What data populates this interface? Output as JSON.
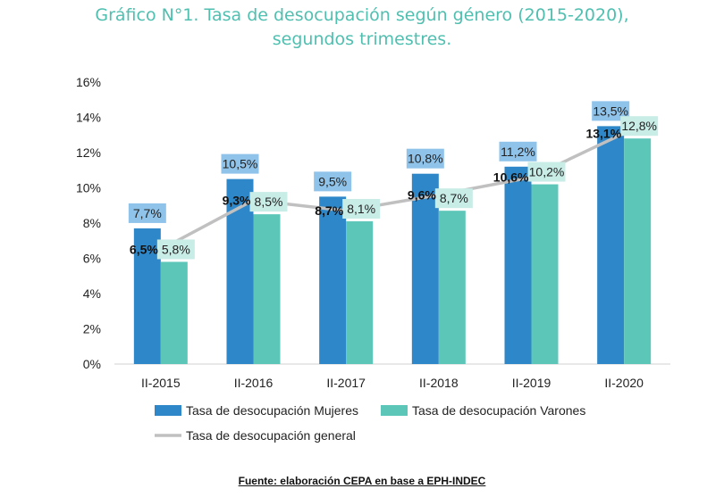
{
  "chart_data": {
    "type": "bar",
    "title_line1": "Gráfico N°1. Tasa de desocupación según género (2015-2020),",
    "title_line2": "segundos trimestres.",
    "categories": [
      "II-2015",
      "II-2016",
      "II-2017",
      "II-2018",
      "II-2019",
      "II-2020"
    ],
    "series": [
      {
        "name": "Tasa de desocupación  Mujeres",
        "type": "bar",
        "color": "#2e87c8",
        "values": [
          7.7,
          10.5,
          9.5,
          10.8,
          11.2,
          13.5
        ],
        "labels": [
          "7,7%",
          "10,5%",
          "9,5%",
          "10,8%",
          "11,2%",
          "13,5%"
        ]
      },
      {
        "name": "Tasa de desocupación Varones",
        "type": "bar",
        "color": "#5cc6b9",
        "values": [
          5.8,
          8.5,
          8.1,
          8.7,
          10.2,
          12.8
        ],
        "labels": [
          "5,8%",
          "8,5%",
          "8,1%",
          "8,7%",
          "10,2%",
          "12,8%"
        ]
      },
      {
        "name": "Tasa de desocupación general",
        "type": "line",
        "color": "#c0c0c0",
        "values": [
          6.5,
          9.3,
          8.7,
          9.6,
          10.6,
          13.1
        ],
        "labels": [
          "6,5%",
          "9,3%",
          "8,7%",
          "9,6%",
          "10,6%",
          "13,1%"
        ]
      }
    ],
    "ylim": [
      0,
      16
    ],
    "yticks": [
      "0%",
      "2%",
      "4%",
      "6%",
      "8%",
      "10%",
      "12%",
      "14%",
      "16%"
    ],
    "legend_position": "bottom",
    "source": "Fuente: elaboración CEPA en base a EPH-INDEC"
  }
}
